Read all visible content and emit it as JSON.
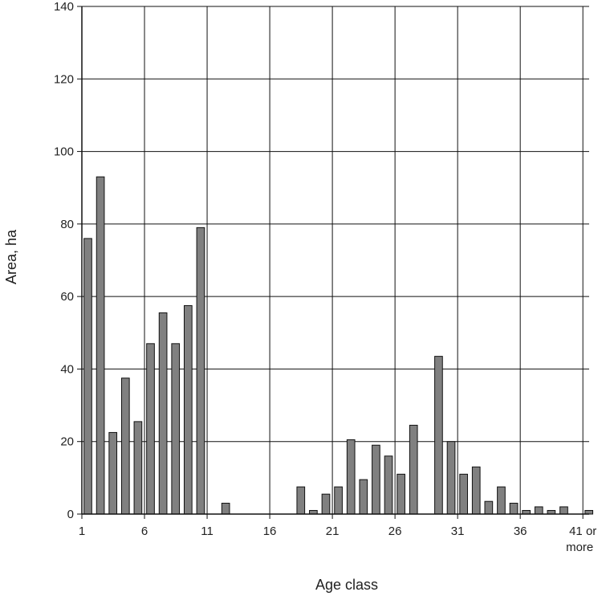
{
  "chart_data": {
    "type": "bar",
    "title": "",
    "xlabel": "Age class",
    "ylabel": "Area, ha",
    "ylim": [
      0,
      140
    ],
    "yticks": [
      "0",
      "20",
      "40",
      "60",
      "80",
      "100",
      "120",
      "140"
    ],
    "xticks": [
      {
        "class": 1,
        "label": "1"
      },
      {
        "class": 6,
        "label": "6"
      },
      {
        "class": 11,
        "label": "11"
      },
      {
        "class": 16,
        "label": "16"
      },
      {
        "class": 21,
        "label": "21"
      },
      {
        "class": 26,
        "label": "26"
      },
      {
        "class": 31,
        "label": "31"
      },
      {
        "class": 36,
        "label": "36"
      },
      {
        "class": 41,
        "label": "41 or",
        "label2": "more"
      }
    ],
    "grid": true,
    "bar_color": "#808080",
    "categories": [
      1,
      2,
      3,
      4,
      5,
      6,
      7,
      8,
      9,
      10,
      11,
      12,
      13,
      14,
      15,
      16,
      17,
      18,
      19,
      20,
      21,
      22,
      23,
      24,
      25,
      26,
      27,
      28,
      29,
      30,
      31,
      32,
      33,
      34,
      35,
      36,
      37,
      38,
      39,
      40,
      41
    ],
    "values": [
      76,
      93,
      22.5,
      37.5,
      25.5,
      47,
      55.5,
      47,
      57.5,
      79,
      0,
      3,
      0,
      0,
      0,
      0,
      0,
      7.5,
      1,
      5.5,
      7.5,
      20.5,
      9.5,
      19,
      16,
      11,
      24.5,
      0,
      43.5,
      20,
      11,
      13,
      3.5,
      7.5,
      3,
      1,
      2,
      1,
      2,
      0,
      1
    ]
  }
}
